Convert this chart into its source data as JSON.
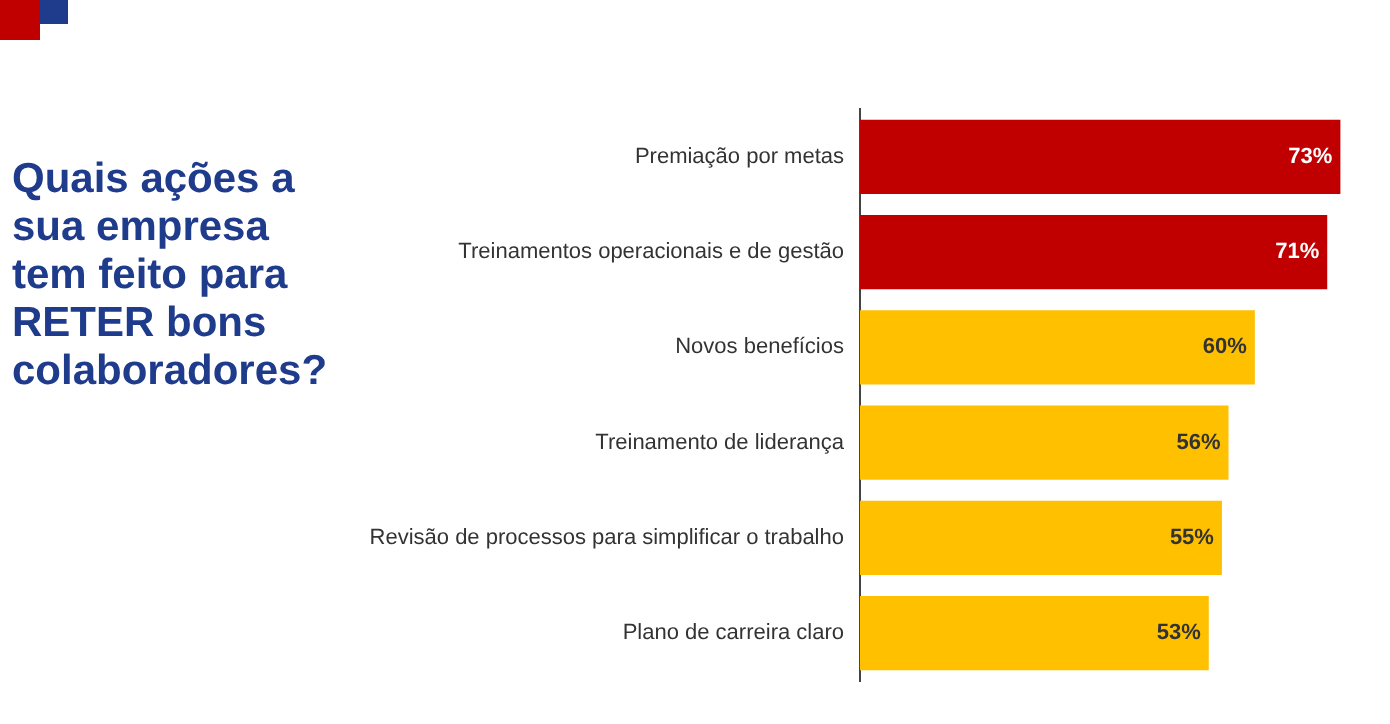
{
  "chart_data": {
    "type": "bar",
    "orientation": "horizontal",
    "title": "Quais ações a sua empresa tem feito para RETER bons colaboradores?",
    "categories": [
      "Premiação por metas",
      "Treinamentos operacionais e de gestão",
      "Novos benefícios",
      "Treinamento de liderança",
      "Revisão de processos para simplificar o trabalho",
      "Plano de carreira claro"
    ],
    "values": [
      73,
      71,
      60,
      56,
      55,
      53
    ],
    "colors": [
      "#c00000",
      "#c00000",
      "#ffc000",
      "#ffc000",
      "#ffc000",
      "#ffc000"
    ],
    "value_labels": [
      "73%",
      "71%",
      "60%",
      "56%",
      "55%",
      "53%"
    ],
    "tick_labels": "y"
  }
}
